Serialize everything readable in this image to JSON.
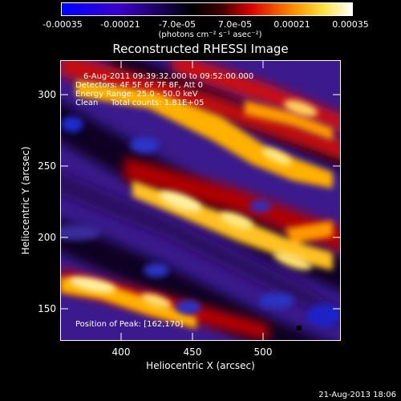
{
  "colorbar": {
    "tick_labels": [
      "-0.00035",
      "-0.00021",
      "-7.0e-05",
      "7.0e-05",
      "0.00021",
      "0.00035"
    ],
    "units_label": "(photons cm⁻² s⁻¹ asec⁻²)",
    "range": [
      -0.00035,
      0.00035
    ],
    "colormap": [
      "#0000ff",
      "#1a00d8",
      "#000000",
      "#ff0000",
      "#ffa500",
      "#ffffff"
    ]
  },
  "title": "Reconstructed RHESSI Image",
  "annotations": {
    "time": "6-Aug-2011 09:39:32.000 to 09:52:00.000",
    "detectors": "Detectors: 4F 5F 6F 7F 8F, Att 0",
    "energy": "Energy Range: 25.0 - 50.0 keV",
    "clean": "Clean     Total counts: 1.81E+05",
    "peak": "Position of Peak: [162,170]"
  },
  "axes": {
    "x_label": "Heliocentric X (arcsec)",
    "y_label": "Heliocentric Y (arcsec)",
    "x_ticks": [
      "400",
      "450",
      "500"
    ],
    "y_ticks": [
      "300",
      "250",
      "200",
      "150"
    ],
    "x_range": [
      360,
      548
    ],
    "y_range": [
      128,
      325
    ]
  },
  "footer_date": "21-Aug-2013 18:06"
}
